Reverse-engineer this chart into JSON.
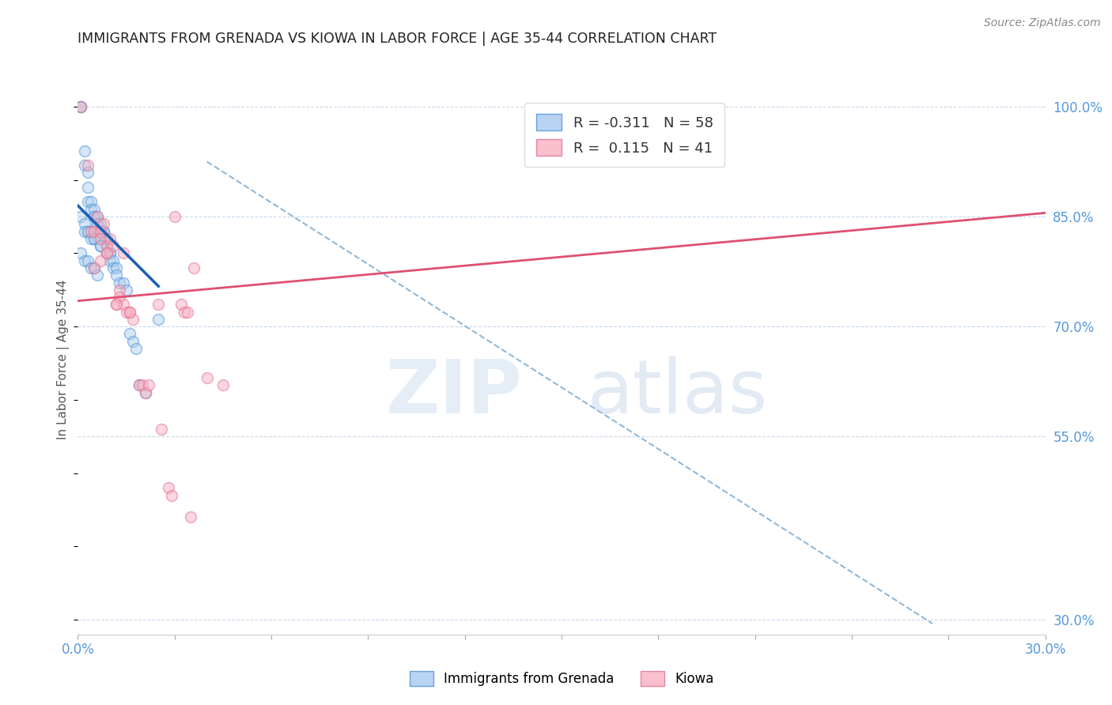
{
  "title": "IMMIGRANTS FROM GRENADA VS KIOWA IN LABOR FORCE | AGE 35-44 CORRELATION CHART",
  "source": "Source: ZipAtlas.com",
  "ylabel": "In Labor Force | Age 35-44",
  "xlim": [
    0.0,
    0.3
  ],
  "ylim": [
    0.28,
    1.03
  ],
  "yticks_right": [
    0.3,
    0.55,
    0.7,
    0.85,
    1.0
  ],
  "yticklabels_right": [
    "30.0%",
    "55.0%",
    "70.0%",
    "85.0%",
    "100.0%"
  ],
  "legend_label1": "R = -0.311   N = 58",
  "legend_label2": "R =  0.115   N = 41",
  "legend_color1": "#a8c8f0",
  "legend_color2": "#f8b0c0",
  "legend_edge1": "#4a90d9",
  "legend_edge2": "#e07090",
  "watermark_zip": "ZIP",
  "watermark_atlas": "atlas",
  "blue_scatter_x": [
    0.001,
    0.001,
    0.002,
    0.002,
    0.003,
    0.003,
    0.003,
    0.004,
    0.004,
    0.005,
    0.005,
    0.005,
    0.006,
    0.006,
    0.006,
    0.007,
    0.007,
    0.007,
    0.008,
    0.008,
    0.008,
    0.009,
    0.009,
    0.009,
    0.01,
    0.01,
    0.01,
    0.011,
    0.011,
    0.012,
    0.012,
    0.013,
    0.014,
    0.015,
    0.016,
    0.017,
    0.018,
    0.019,
    0.021,
    0.025,
    0.001,
    0.002,
    0.003,
    0.004,
    0.005,
    0.006,
    0.007,
    0.001,
    0.002,
    0.003,
    0.004,
    0.005,
    0.006,
    0.002,
    0.003,
    0.004,
    0.005,
    0.007
  ],
  "blue_scatter_y": [
    1.0,
    1.0,
    0.94,
    0.92,
    0.91,
    0.89,
    0.87,
    0.87,
    0.86,
    0.86,
    0.85,
    0.85,
    0.85,
    0.84,
    0.84,
    0.84,
    0.83,
    0.83,
    0.83,
    0.83,
    0.82,
    0.82,
    0.81,
    0.8,
    0.8,
    0.8,
    0.79,
    0.79,
    0.78,
    0.78,
    0.77,
    0.76,
    0.76,
    0.75,
    0.69,
    0.68,
    0.67,
    0.62,
    0.61,
    0.71,
    0.85,
    0.84,
    0.83,
    0.83,
    0.82,
    0.82,
    0.81,
    0.8,
    0.79,
    0.79,
    0.78,
    0.78,
    0.77,
    0.83,
    0.83,
    0.82,
    0.82,
    0.81
  ],
  "pink_scatter_x": [
    0.001,
    0.003,
    0.004,
    0.005,
    0.006,
    0.007,
    0.007,
    0.008,
    0.009,
    0.009,
    0.01,
    0.011,
    0.012,
    0.013,
    0.013,
    0.014,
    0.015,
    0.016,
    0.017,
    0.019,
    0.02,
    0.021,
    0.022,
    0.025,
    0.026,
    0.028,
    0.029,
    0.03,
    0.032,
    0.033,
    0.034,
    0.035,
    0.036,
    0.04,
    0.045,
    0.005,
    0.007,
    0.009,
    0.012,
    0.014,
    0.016
  ],
  "pink_scatter_y": [
    1.0,
    0.92,
    0.83,
    0.83,
    0.85,
    0.83,
    0.82,
    0.84,
    0.81,
    0.8,
    0.82,
    0.81,
    0.73,
    0.75,
    0.74,
    0.73,
    0.72,
    0.72,
    0.71,
    0.62,
    0.62,
    0.61,
    0.62,
    0.73,
    0.56,
    0.48,
    0.47,
    0.85,
    0.73,
    0.72,
    0.72,
    0.44,
    0.78,
    0.63,
    0.62,
    0.78,
    0.79,
    0.8,
    0.73,
    0.8,
    0.72
  ],
  "blue_line_x0": 0.0,
  "blue_line_x1": 0.025,
  "blue_line_y0": 0.865,
  "blue_line_y1": 0.755,
  "pink_line_x0": 0.0,
  "pink_line_x1": 0.3,
  "pink_line_y0": 0.735,
  "pink_line_y1": 0.855,
  "dashed_line_x0": 0.04,
  "dashed_line_x1": 0.265,
  "dashed_line_y0": 0.925,
  "dashed_line_y1": 0.295,
  "scatter_alpha": 0.5,
  "scatter_size": 100,
  "scatter_linewidth": 1.2,
  "blue_face": "#b0d0f0",
  "blue_edge": "#4a90d9",
  "pink_face": "#f8b0c0",
  "pink_edge": "#e07090",
  "blue_line_color": "#1a5fb4",
  "pink_line_color": "#e05070",
  "dashed_line_color": "#90b8d8",
  "grid_color": "#c8d8e8",
  "background_color": "#ffffff",
  "title_color": "#222222",
  "source_color": "#888888",
  "ylabel_color": "#555555",
  "tick_color": "#5599dd",
  "bottom_label1": "Immigrants from Grenada",
  "bottom_label2": "Kiowa"
}
